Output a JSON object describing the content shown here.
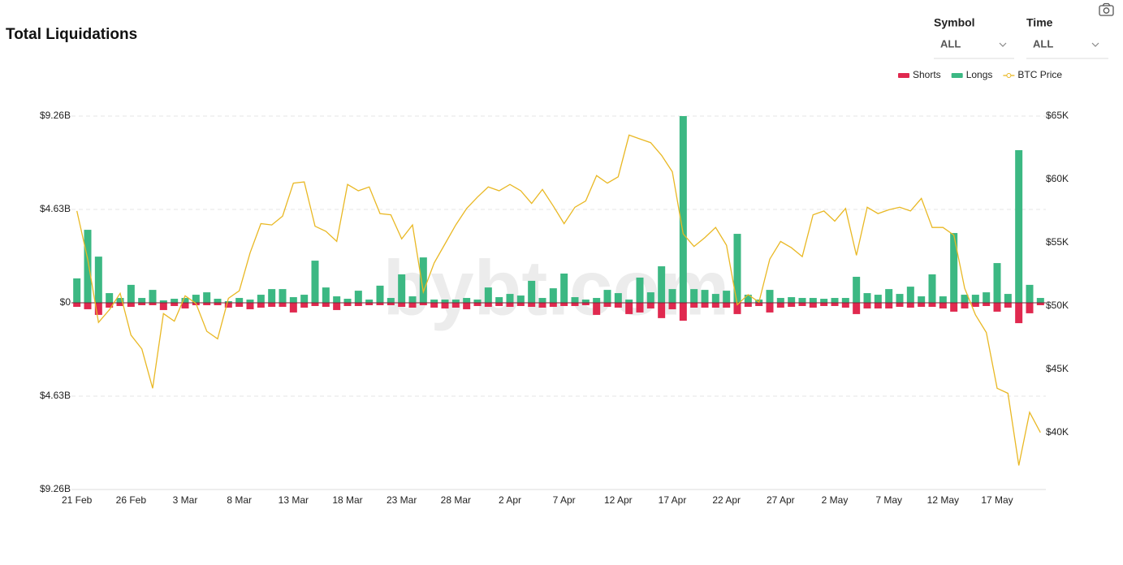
{
  "controls": [
    {
      "label": "Symbol",
      "value": "ALL"
    },
    {
      "label": "Time",
      "value": "ALL"
    }
  ],
  "chart_data": {
    "type": "bar",
    "title": "Total Liquidations",
    "watermark": "bybt.com",
    "grid": true,
    "legend": "top-right",
    "categories": [
      "21 Feb",
      null,
      null,
      null,
      null,
      "26 Feb",
      null,
      null,
      null,
      null,
      "3 Mar",
      null,
      null,
      null,
      null,
      "8 Mar",
      null,
      null,
      null,
      null,
      "13 Mar",
      null,
      null,
      null,
      null,
      "18 Mar",
      null,
      null,
      null,
      null,
      "23 Mar",
      null,
      null,
      null,
      null,
      "28 Mar",
      null,
      null,
      null,
      null,
      "2 Apr",
      null,
      null,
      null,
      null,
      "7 Apr",
      null,
      null,
      null,
      null,
      "12 Apr",
      null,
      null,
      null,
      null,
      "17 Apr",
      null,
      null,
      null,
      null,
      "22 Apr",
      null,
      null,
      null,
      null,
      "27 Apr",
      null,
      null,
      null,
      null,
      "2 May",
      null,
      null,
      null,
      null,
      "7 May",
      null,
      null,
      null,
      null,
      "12 May",
      null,
      null,
      null,
      null,
      "17 May",
      null,
      null,
      null,
      null
    ],
    "ylim": [
      -9.26,
      9.26
    ],
    "yticks": [
      {
        "value": -9.26,
        "label": "$9.26B"
      },
      {
        "value": -4.63,
        "label": "$4.63B"
      },
      {
        "value": 0,
        "label": "$0"
      },
      {
        "value": 4.63,
        "label": "$4.63B"
      },
      {
        "value": 9.26,
        "label": "$9.26B"
      }
    ],
    "y2lim": [
      35.5,
      65
    ],
    "y2ticks": [
      {
        "value": 40,
        "label": "$40K"
      },
      {
        "value": 45,
        "label": "$45K"
      },
      {
        "value": 50,
        "label": "$50K"
      },
      {
        "value": 55,
        "label": "$55K"
      },
      {
        "value": 60,
        "label": "$60K"
      },
      {
        "value": 65,
        "label": "$65K"
      }
    ],
    "series": [
      {
        "name": "Shorts",
        "color": "#e0294f",
        "values": [
          -0.2,
          -0.32,
          -0.6,
          -0.24,
          -0.16,
          -0.2,
          -0.12,
          -0.12,
          -0.36,
          -0.16,
          -0.28,
          -0.12,
          -0.12,
          -0.12,
          -0.24,
          -0.2,
          -0.32,
          -0.24,
          -0.2,
          -0.2,
          -0.48,
          -0.24,
          -0.16,
          -0.2,
          -0.36,
          -0.16,
          -0.16,
          -0.12,
          -0.12,
          -0.12,
          -0.2,
          -0.24,
          -0.12,
          -0.24,
          -0.28,
          -0.24,
          -0.32,
          -0.16,
          -0.2,
          -0.16,
          -0.2,
          -0.16,
          -0.2,
          -0.24,
          -0.2,
          -0.16,
          -0.16,
          -0.12,
          -0.6,
          -0.2,
          -0.24,
          -0.56,
          -0.48,
          -0.28,
          -0.76,
          -0.32,
          -0.89,
          -0.24,
          -0.24,
          -0.24,
          -0.24,
          -0.56,
          -0.2,
          -0.16,
          -0.48,
          -0.24,
          -0.2,
          -0.16,
          -0.24,
          -0.16,
          -0.16,
          -0.24,
          -0.56,
          -0.28,
          -0.28,
          -0.28,
          -0.2,
          -0.24,
          -0.2,
          -0.2,
          -0.28,
          -0.44,
          -0.28,
          -0.2,
          -0.16,
          -0.44,
          -0.24,
          -1.01,
          -0.52,
          -0.12
        ]
      },
      {
        "name": "Longs",
        "color": "#3cb883",
        "values": [
          1.21,
          3.62,
          2.29,
          0.48,
          0.24,
          0.89,
          0.24,
          0.64,
          0.12,
          0.2,
          0.24,
          0.4,
          0.52,
          0.2,
          0.08,
          0.24,
          0.16,
          0.4,
          0.68,
          0.68,
          0.28,
          0.4,
          2.09,
          0.76,
          0.32,
          0.2,
          0.6,
          0.16,
          0.85,
          0.24,
          1.41,
          0.32,
          2.25,
          0.16,
          0.16,
          0.16,
          0.24,
          0.16,
          0.76,
          0.28,
          0.44,
          0.36,
          1.09,
          0.24,
          0.72,
          1.45,
          0.28,
          0.16,
          0.24,
          0.64,
          0.48,
          0.16,
          1.25,
          0.52,
          1.81,
          0.68,
          9.26,
          0.68,
          0.64,
          0.44,
          0.6,
          3.42,
          0.4,
          0.16,
          0.64,
          0.24,
          0.28,
          0.24,
          0.24,
          0.2,
          0.24,
          0.24,
          1.29,
          0.48,
          0.4,
          0.68,
          0.44,
          0.8,
          0.32,
          1.41,
          0.32,
          3.46,
          0.4,
          0.4,
          0.52,
          1.97,
          0.44,
          7.57,
          0.89,
          0.24
        ]
      },
      {
        "name": "BTC Price",
        "color": "#e9b824",
        "type": "line",
        "axis": "y2",
        "values": [
          57.5,
          53.7,
          48.7,
          49.7,
          51.0,
          47.7,
          46.6,
          43.5,
          49.4,
          48.8,
          50.8,
          50.2,
          48.0,
          47.4,
          50.6,
          51.2,
          54.2,
          56.5,
          56.4,
          57.1,
          59.7,
          59.8,
          56.3,
          55.9,
          55.1,
          59.6,
          59.1,
          59.4,
          57.3,
          57.2,
          55.3,
          56.4,
          51.1,
          53.4,
          54.9,
          56.4,
          57.7,
          58.6,
          59.4,
          59.1,
          59.6,
          59.1,
          58.1,
          59.2,
          57.9,
          56.5,
          57.8,
          58.3,
          60.3,
          59.7,
          60.2,
          63.5,
          63.2,
          62.9,
          61.9,
          60.6,
          55.7,
          54.7,
          55.4,
          56.2,
          54.8,
          50.1,
          50.9,
          50.3,
          53.7,
          55.1,
          54.6,
          53.9,
          57.2,
          57.5,
          56.7,
          57.7,
          54.0,
          57.8,
          57.3,
          57.6,
          57.8,
          57.5,
          58.5,
          56.2,
          56.2,
          55.6,
          51.4,
          49.3,
          47.9,
          43.5,
          43.1,
          37.4,
          41.6,
          40.0
        ]
      }
    ]
  }
}
